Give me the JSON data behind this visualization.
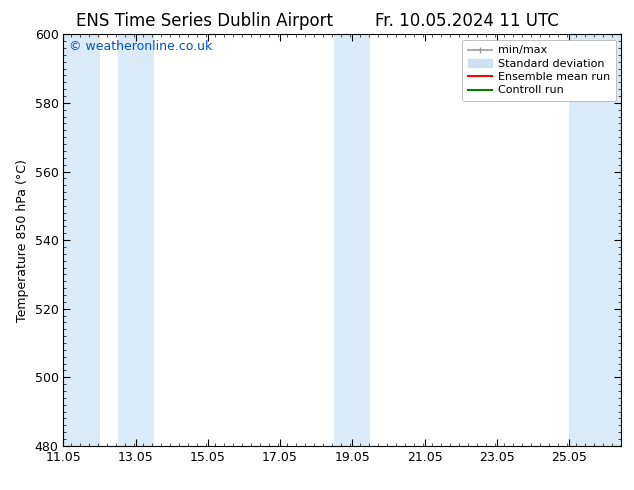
{
  "title": "ENS Time Series Dublin Airport",
  "title_right": "Fr. 10.05.2024 11 UTC",
  "ylabel": "Temperature 850 hPa (°C)",
  "watermark": "© weatheronline.co.uk",
  "watermark_color": "#0055cc",
  "xlim_start": 11.05,
  "xlim_end": 26.5,
  "ylim_bottom": 480,
  "ylim_top": 600,
  "yticks": [
    480,
    500,
    520,
    540,
    560,
    580,
    600
  ],
  "xticks": [
    11.05,
    13.05,
    15.05,
    17.05,
    19.05,
    21.05,
    23.05,
    25.05
  ],
  "xtick_labels": [
    "11.05",
    "13.05",
    "15.05",
    "17.05",
    "19.05",
    "21.05",
    "23.05",
    "25.05"
  ],
  "bg_color": "#ffffff",
  "plot_bg_color": "#ffffff",
  "shaded_bands": [
    {
      "x_start": 11.05,
      "x_end": 12.05,
      "color": "#daeaf7"
    },
    {
      "x_start": 12.55,
      "x_end": 13.55,
      "color": "#daeaf7"
    },
    {
      "x_start": 18.55,
      "x_end": 19.55,
      "color": "#daeaf7"
    },
    {
      "x_start": 25.05,
      "x_end": 26.5,
      "color": "#daeaf7"
    }
  ],
  "legend_entries": [
    {
      "label": "min/max",
      "type": "errorbar",
      "color": "#999999"
    },
    {
      "label": "Standard deviation",
      "type": "patch",
      "color": "#cce0f0"
    },
    {
      "label": "Ensemble mean run",
      "type": "line",
      "color": "#ff0000"
    },
    {
      "label": "Controll run",
      "type": "line",
      "color": "#008000"
    }
  ],
  "title_fontsize": 12,
  "axis_fontsize": 9,
  "tick_fontsize": 9,
  "watermark_fontsize": 9,
  "legend_fontsize": 8
}
